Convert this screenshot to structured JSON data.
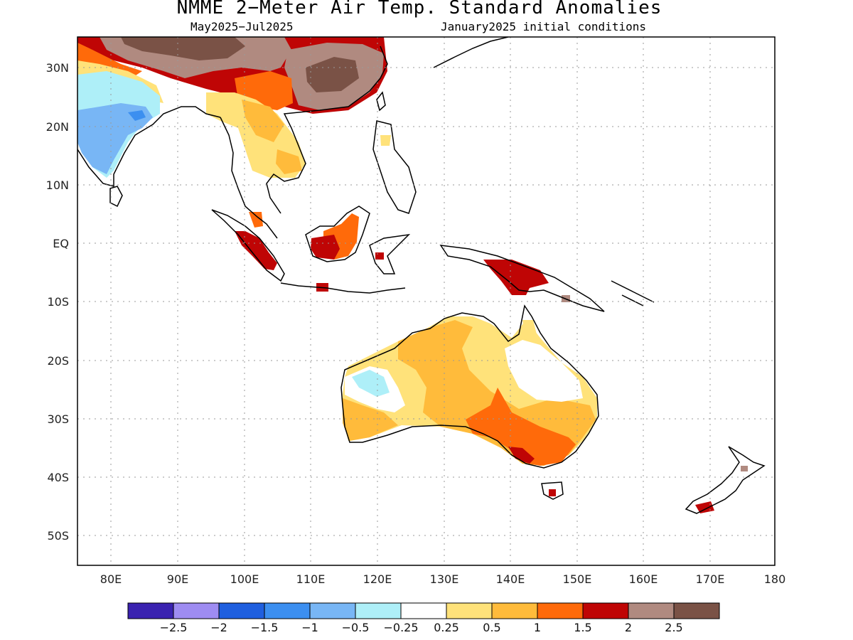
{
  "title": "NMME 2−Meter Air Temp. Standard Anomalies",
  "subtitle_left": "May2025−Jul2025",
  "subtitle_right": "January2025 initial conditions",
  "lat_labels": [
    "30N",
    "20N",
    "10N",
    "EQ",
    "10S",
    "20S",
    "30S",
    "40S",
    "50S"
  ],
  "lon_labels": [
    "80E",
    "90E",
    "100E",
    "110E",
    "120E",
    "130E",
    "140E",
    "150E",
    "160E",
    "170E",
    "180"
  ],
  "colorbar": {
    "colors": [
      "#3a22b0",
      "#9e8cf2",
      "#1f5fdf",
      "#3c8ff0",
      "#78b6f5",
      "#aeeff8",
      "#ffffff",
      "#ffe27a",
      "#ffbb3b",
      "#ff6a0a",
      "#bf0505",
      "#b08a80",
      "#7a5246"
    ],
    "labels": [
      "−2.5",
      "−2",
      "−1.5",
      "−1",
      "−0.5",
      "−0.25",
      "0.25",
      "0.5",
      "1",
      "1.5",
      "2",
      "2.5"
    ]
  },
  "legend_colors": {
    "coastline": "#000000",
    "gridline": "#9a9a9a"
  }
}
